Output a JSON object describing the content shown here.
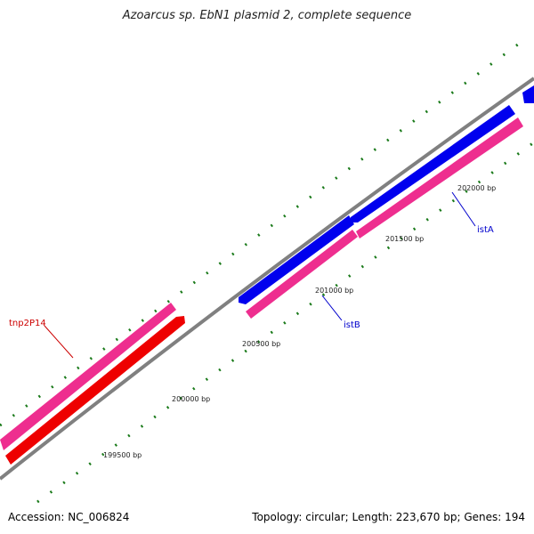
{
  "title": "Azoarcus sp. EbN1 plasmid 2, complete sequence",
  "footer": {
    "accession": "Accession: NC_006824",
    "summary": "Topology: circular; Length: 223,670 bp; Genes: 194"
  },
  "colors": {
    "backbone": "#808080",
    "forward_gene": "#0000ee",
    "reverse_gene": "#ee0000",
    "cds": "#ee2e8f",
    "tick": "#1a7a1a",
    "label_blue": "#0000cc",
    "label_red": "#cc0000"
  },
  "ticks": [
    {
      "label": "199500 bp"
    },
    {
      "label": "200000 bp"
    },
    {
      "label": "200500 bp"
    },
    {
      "label": "201000 bp"
    },
    {
      "label": "201500 bp"
    },
    {
      "label": "202000 bp"
    }
  ],
  "genes": [
    {
      "label": "tnp2P14"
    },
    {
      "label": "istB"
    },
    {
      "label": "istA"
    }
  ]
}
